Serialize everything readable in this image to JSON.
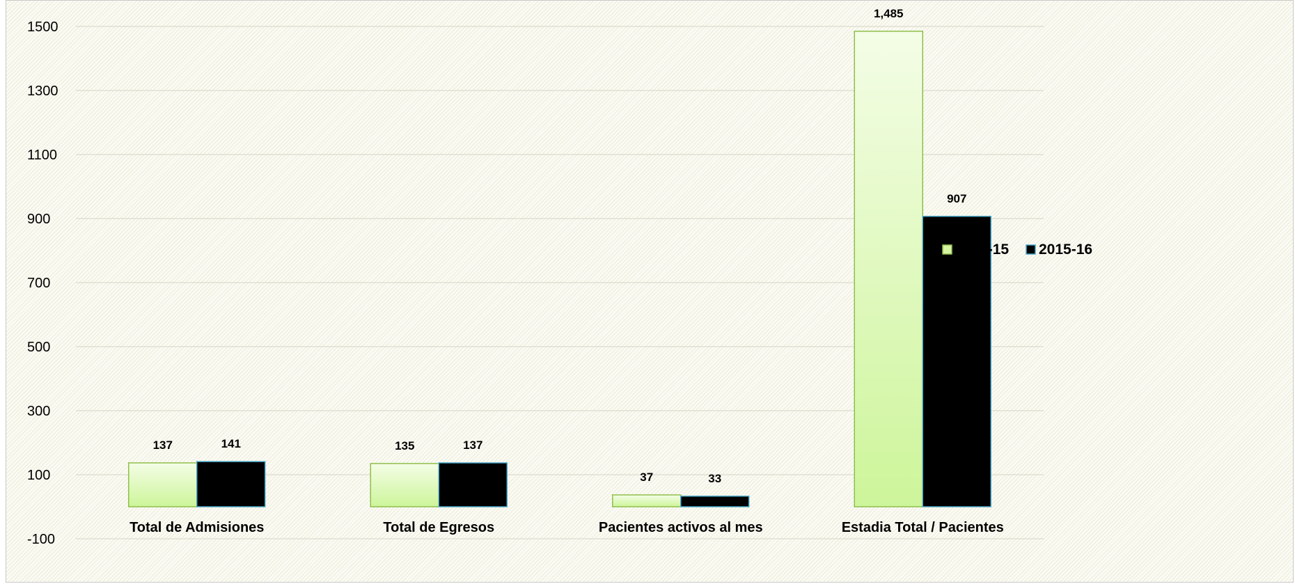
{
  "chart_data": {
    "type": "bar",
    "categories": [
      "Total de Admisiones",
      "Total de Egresos",
      "Pacientes activos al mes",
      "Estadia Total / Pacientes"
    ],
    "series": [
      {
        "name": "2014-15",
        "values": [
          137,
          135,
          37,
          1485
        ],
        "labels": [
          "137",
          "135",
          "37",
          "1,485"
        ],
        "color": "#d6f5a3",
        "stroke": "#8fbf4a"
      },
      {
        "name": "2015-16",
        "values": [
          141,
          137,
          33,
          907
        ],
        "labels": [
          "141",
          "137",
          "33",
          "907"
        ],
        "color": "#000000",
        "stroke": "#4aa8c8"
      }
    ],
    "yticks": [
      "1500",
      "1300",
      "1100",
      "900",
      "700",
      "500",
      "300",
      "100",
      "-100"
    ],
    "ylim": [
      -100,
      1500
    ],
    "grid": true,
    "legend_position": "right",
    "title": "",
    "xlabel": "",
    "ylabel": ""
  }
}
